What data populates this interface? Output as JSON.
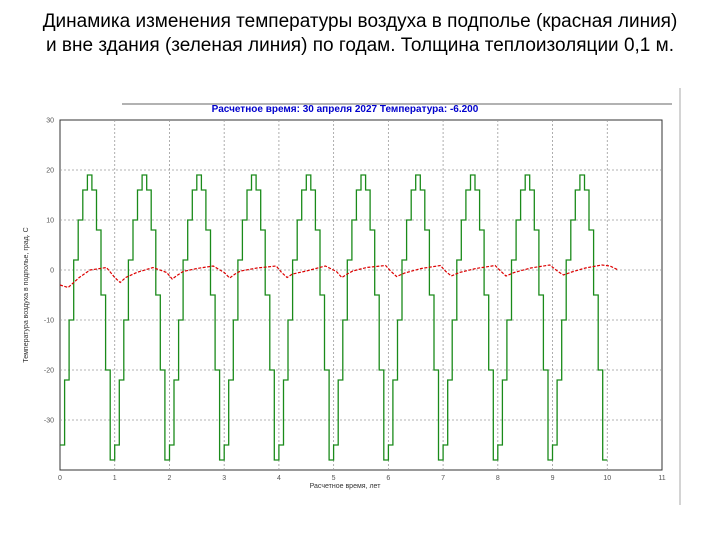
{
  "slide": {
    "title": "Динамика изменения температуры воздуха в подполье (красная линия) и вне здания (зеленая линия) по годам. Толщина теплоизоляции 0,1 м."
  },
  "chart_data": {
    "type": "line",
    "header": "Расчетное время: 30 апреля 2027 Температура: -6.200",
    "xlabel": "Расчетное время, лет",
    "ylabel": "Температура воздуха в подполье, град. С",
    "xlim": [
      0,
      11
    ],
    "ylim": [
      -40,
      30
    ],
    "x_ticks": [
      "0",
      "1",
      "2",
      "3",
      "4",
      "5",
      "6",
      "7",
      "8",
      "9",
      "10",
      "11"
    ],
    "y_ticks": [
      "30",
      "20",
      "10",
      "0",
      "-10",
      "-20",
      "-30"
    ],
    "grid": true,
    "colors": {
      "outside": "#1a8a1a",
      "underfloor": "#dd0000",
      "header": "#0000cc",
      "grid": "#9a9a9a"
    },
    "outside_cycle_months": [
      {
        "month": 0,
        "value": -35
      },
      {
        "month": 1,
        "value": -22
      },
      {
        "month": 2,
        "value": -10
      },
      {
        "month": 3,
        "value": 2
      },
      {
        "month": 4,
        "value": 10
      },
      {
        "month": 5,
        "value": 16
      },
      {
        "month": 6,
        "value": 19
      },
      {
        "month": 7,
        "value": 16
      },
      {
        "month": 8,
        "value": 8
      },
      {
        "month": 9,
        "value": -5
      },
      {
        "month": 10,
        "value": -20
      },
      {
        "month": 11,
        "value": -38
      }
    ],
    "series": [
      {
        "key": "outside",
        "years": 10
      },
      {
        "key": "underfloor",
        "x": [
          0,
          0.15,
          0.35,
          0.55,
          0.85,
          1.0,
          1.1,
          1.2,
          1.4,
          1.7,
          1.95,
          2.05,
          2.15,
          2.25,
          2.5,
          2.8,
          3.0,
          3.1,
          3.2,
          3.3,
          3.6,
          3.95,
          4.05,
          4.15,
          4.25,
          4.5,
          4.85,
          5.05,
          5.15,
          5.25,
          5.35,
          5.6,
          5.95,
          6.05,
          6.15,
          6.3,
          6.6,
          6.95,
          7.05,
          7.15,
          7.3,
          7.6,
          7.95,
          8.05,
          8.15,
          8.3,
          8.6,
          8.95,
          9.1,
          9.2,
          9.35,
          9.6,
          9.9,
          10.05,
          10.2
        ],
        "y": [
          -3,
          -3.5,
          -1.5,
          0,
          0.5,
          -1.5,
          -2.5,
          -1.5,
          -0.5,
          0.5,
          -0.5,
          -1.8,
          -1,
          -0.3,
          0.3,
          0.8,
          -0.5,
          -1.6,
          -0.8,
          -0.2,
          0.4,
          0.8,
          -0.5,
          -1.5,
          -0.8,
          -0.2,
          0.8,
          -0.3,
          -1.5,
          -0.8,
          -0.2,
          0.5,
          0.9,
          -0.3,
          -1.3,
          -0.6,
          0.3,
          0.9,
          -0.3,
          -1.2,
          -0.5,
          0.3,
          0.9,
          -0.2,
          -1.2,
          -0.5,
          0.4,
          1.0,
          -0.3,
          -1.0,
          -0.4,
          0.4,
          1.0,
          0.8,
          0.0
        ]
      }
    ]
  }
}
